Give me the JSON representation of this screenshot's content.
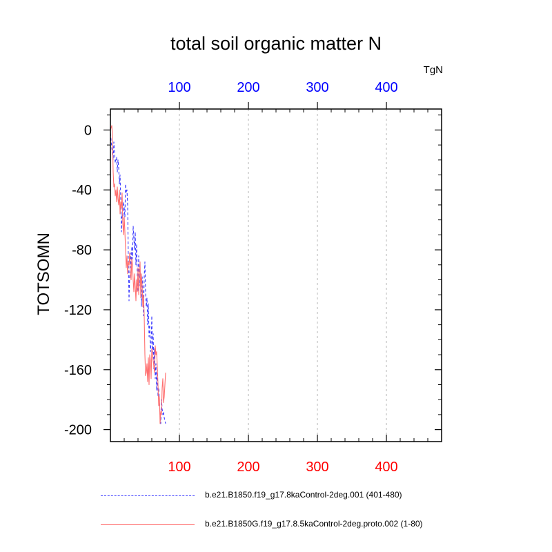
{
  "chart_data": {
    "type": "line",
    "title": "total soil organic matter N",
    "units": "TgN",
    "ylabel": "TOTSOMN",
    "xlim": [
      0,
      480
    ],
    "ylim": [
      -208,
      14
    ],
    "x_ticks": [
      100,
      200,
      300,
      400
    ],
    "y_ticks": [
      0,
      -40,
      -80,
      -120,
      -160,
      -200
    ],
    "top_axis_color": "#0000ff",
    "bottom_axis_color": "#ff0000",
    "grid": "vertical dotted at major x ticks",
    "legend_position": "bottom",
    "series": [
      {
        "name": "b.e21.B1850.f19_g17.8kaControl-2deg.001 (401-480)",
        "color": "#3c3cff",
        "style": "dashed",
        "x": [
          0,
          2,
          4,
          5,
          7,
          9,
          10,
          11,
          12,
          13,
          14,
          15,
          16,
          17,
          18,
          19,
          20,
          21,
          22,
          23,
          24,
          25,
          26,
          27,
          28,
          29,
          30,
          31,
          32,
          33,
          34,
          35,
          36,
          37,
          38,
          39,
          40,
          41,
          42,
          43,
          44,
          45,
          46,
          47,
          48,
          49,
          50,
          51,
          52,
          53,
          54,
          55,
          56,
          57,
          58,
          59,
          60,
          61,
          62,
          63,
          64,
          65,
          66,
          67,
          68,
          69,
          70,
          71,
          72,
          73,
          74,
          75,
          76,
          77,
          78,
          79,
          80
        ],
        "y": [
          -2,
          -12,
          -20,
          -8,
          -22,
          -18,
          -28,
          -20,
          -25,
          -36,
          -30,
          -46,
          -68,
          -56,
          -60,
          -48,
          -52,
          -58,
          -36,
          -42,
          -40,
          -50,
          -88,
          -114,
          -96,
          -82,
          -92,
          -78,
          -86,
          -64,
          -72,
          -80,
          -68,
          -90,
          -76,
          -96,
          -108,
          -84,
          -104,
          -94,
          -100,
          -118,
          -98,
          -106,
          -124,
          -98,
          -88,
          -108,
          -118,
          -112,
          -130,
          -116,
          -138,
          -130,
          -148,
          -142,
          -124,
          -150,
          -136,
          -160,
          -146,
          -166,
          -156,
          -174,
          -160,
          -178,
          -172,
          -182,
          -190,
          -196,
          -180,
          -186,
          -190,
          -188,
          -192,
          -194,
          -196
        ]
      },
      {
        "name": "b.e21.B1850G.f19_g17.8.5kaControl-2deg.proto.002 (1-80)",
        "color": "#ff6f6f",
        "style": "solid",
        "x": [
          0,
          2,
          3,
          4,
          5,
          6,
          7,
          8,
          9,
          10,
          11,
          12,
          13,
          14,
          15,
          16,
          17,
          18,
          19,
          20,
          21,
          22,
          23,
          24,
          25,
          26,
          27,
          28,
          29,
          30,
          31,
          32,
          33,
          34,
          35,
          36,
          37,
          38,
          39,
          40,
          41,
          42,
          43,
          44,
          45,
          46,
          47,
          48,
          49,
          50,
          51,
          52,
          53,
          54,
          55,
          56,
          57,
          58,
          59,
          60,
          61,
          62,
          63,
          64,
          65,
          66,
          67,
          68,
          69,
          70,
          71,
          72,
          73,
          74,
          75,
          76,
          77,
          78,
          79,
          80
        ],
        "y": [
          0,
          3,
          -4,
          -28,
          -38,
          -36,
          -44,
          -40,
          -48,
          -38,
          -46,
          -50,
          -40,
          -56,
          -48,
          -52,
          -42,
          -62,
          -70,
          -58,
          -68,
          -80,
          -92,
          -84,
          -96,
          -88,
          -90,
          -82,
          -96,
          -100,
          -86,
          -90,
          -100,
          -108,
          -96,
          -104,
          -114,
          -100,
          -108,
          -92,
          -110,
          -98,
          -88,
          -112,
          -96,
          -104,
          -118,
          -110,
          -124,
          -150,
          -164,
          -162,
          -156,
          -168,
          -152,
          -170,
          -150,
          -154,
          -166,
          -146,
          -150,
          -154,
          -158,
          -162,
          -144,
          -150,
          -148,
          -158,
          -170,
          -184,
          -178,
          -196,
          -188,
          -190,
          -172,
          -166,
          -182,
          -178,
          -170,
          -162
        ]
      }
    ]
  }
}
